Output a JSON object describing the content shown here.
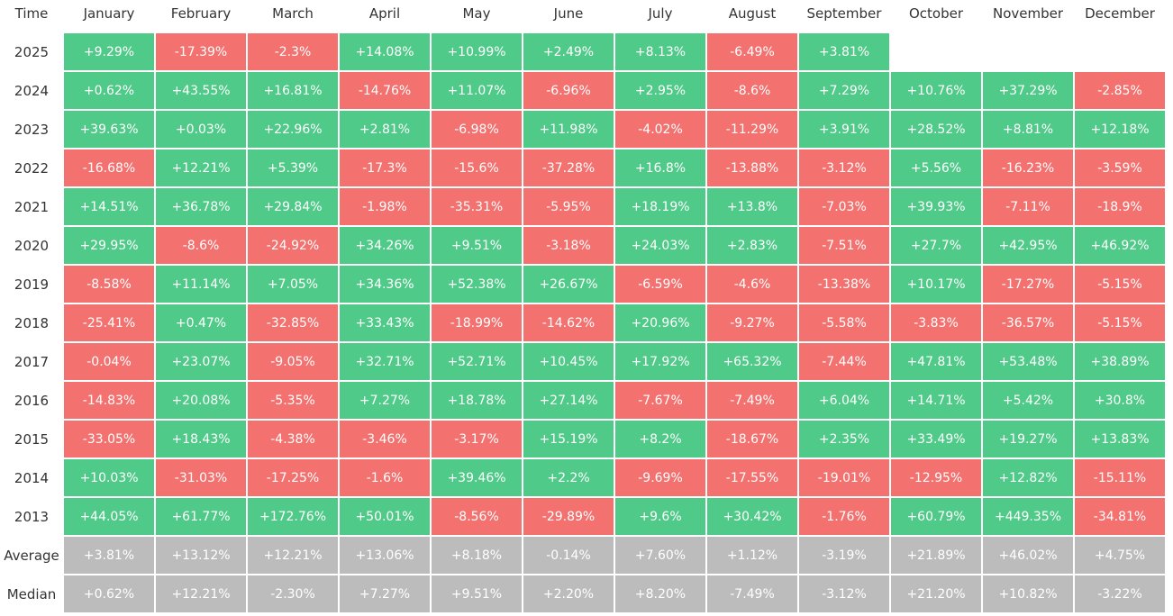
{
  "table": {
    "header": [
      "Time",
      "January",
      "February",
      "March",
      "April",
      "May",
      "June",
      "July",
      "August",
      "September",
      "October",
      "November",
      "December"
    ],
    "rows": [
      [
        "2025",
        "+9.29%",
        "-17.39%",
        "-2.3%",
        "+14.08%",
        "+10.99%",
        "+2.49%",
        "+8.13%",
        "-6.49%",
        "+3.81%"
      ],
      [
        "2024",
        "+0.62%",
        "+43.55%",
        "+16.81%",
        "-14.76%",
        "+11.07%",
        "-6.96%",
        "+2.95%",
        "-8.6%",
        "+7.29%",
        "+10.76%",
        "+37.29%",
        "-2.85%"
      ],
      [
        "2023",
        "+39.63%",
        "+0.03%",
        "+22.96%",
        "+2.81%",
        "-6.98%",
        "+11.98%",
        "-4.02%",
        "-11.29%",
        "+3.91%",
        "+28.52%",
        "+8.81%",
        "+12.18%"
      ],
      [
        "2022",
        "-16.68%",
        "+12.21%",
        "+5.39%",
        "-17.3%",
        "-15.6%",
        "-37.28%",
        "+16.8%",
        "-13.88%",
        "-3.12%",
        "+5.56%",
        "-16.23%",
        "-3.59%"
      ],
      [
        "2021",
        "+14.51%",
        "+36.78%",
        "+29.84%",
        "-1.98%",
        "-35.31%",
        "-5.95%",
        "+18.19%",
        "+13.8%",
        "-7.03%",
        "+39.93%",
        "-7.11%",
        "-18.9%"
      ],
      [
        "2020",
        "+29.95%",
        "-8.6%",
        "-24.92%",
        "+34.26%",
        "+9.51%",
        "-3.18%",
        "+24.03%",
        "+2.83%",
        "-7.51%",
        "+27.7%",
        "+42.95%",
        "+46.92%"
      ],
      [
        "2019",
        "-8.58%",
        "+11.14%",
        "+7.05%",
        "+34.36%",
        "+52.38%",
        "+26.67%",
        "-6.59%",
        "-4.6%",
        "-13.38%",
        "+10.17%",
        "-17.27%",
        "-5.15%"
      ],
      [
        "2018",
        "-25.41%",
        "+0.47%",
        "-32.85%",
        "+33.43%",
        "-18.99%",
        "-14.62%",
        "+20.96%",
        "-9.27%",
        "-5.58%",
        "-3.83%",
        "-36.57%",
        "-5.15%"
      ],
      [
        "2017",
        "-0.04%",
        "+23.07%",
        "-9.05%",
        "+32.71%",
        "+52.71%",
        "+10.45%",
        "+17.92%",
        "+65.32%",
        "-7.44%",
        "+47.81%",
        "+53.48%",
        "+38.89%"
      ],
      [
        "2016",
        "-14.83%",
        "+20.08%",
        "-5.35%",
        "+7.27%",
        "+18.78%",
        "+27.14%",
        "-7.67%",
        "-7.49%",
        "+6.04%",
        "+14.71%",
        "+5.42%",
        "+30.8%"
      ],
      [
        "2015",
        "-33.05%",
        "+18.43%",
        "-4.38%",
        "-3.46%",
        "-3.17%",
        "+15.19%",
        "+8.2%",
        "-18.67%",
        "+2.35%",
        "+33.49%",
        "+19.27%",
        "+13.83%"
      ],
      [
        "2014",
        "+10.03%",
        "-31.03%",
        "-17.25%",
        "-1.6%",
        "+39.46%",
        "+2.2%",
        "-9.69%",
        "-17.55%",
        "-19.01%",
        "-12.95%",
        "+12.82%",
        "-15.11%"
      ],
      [
        "2013",
        "+44.05%",
        "+61.77%",
        "+172.76%",
        "+50.01%",
        "-8.56%",
        "-29.89%",
        "+9.6%",
        "+30.42%",
        "-1.76%",
        "+60.79%",
        "+449.35%",
        "-34.81%"
      ],
      [
        "Average",
        "+3.81%",
        "+13.12%",
        "+12.21%",
        "+13.06%",
        "+8.18%",
        "-0.14%",
        "+7.60%",
        "+1.12%",
        "-3.19%",
        "+21.89%",
        "+46.02%",
        "+4.75%"
      ],
      [
        "Median",
        "+0.62%",
        "+12.21%",
        "-2.30%",
        "+7.27%",
        "+9.51%",
        "+2.20%",
        "+8.20%",
        "-7.49%",
        "-3.12%",
        "+21.20%",
        "+10.82%",
        "-3.22%"
      ]
    ]
  },
  "colors": {
    "positive": "#4fca88",
    "negative": "#f3716f",
    "summary": "#bcbcbc"
  }
}
